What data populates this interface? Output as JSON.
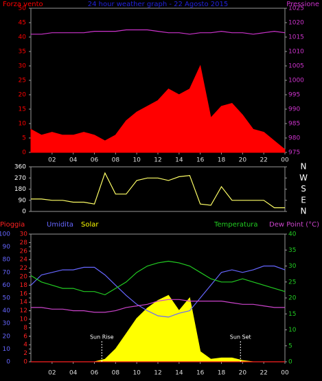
{
  "chart_data": [
    {
      "type": "line",
      "title": "24 hour weather graph - 22 Agosto 2015",
      "x": [
        0,
        1,
        2,
        3,
        4,
        5,
        6,
        7,
        8,
        9,
        10,
        11,
        12,
        13,
        14,
        15,
        16,
        17,
        18,
        19,
        20,
        21,
        22,
        23,
        24
      ],
      "xlim": [
        0,
        24
      ],
      "xticks": [
        {
          "value": 2,
          "label": "02"
        },
        {
          "value": 4,
          "label": "04"
        },
        {
          "value": 6,
          "label": "06"
        },
        {
          "value": 8,
          "label": "08"
        },
        10,
        12,
        14,
        16,
        18,
        20,
        22,
        {
          "value": 24,
          "label": "00"
        }
      ],
      "ylim": [
        0,
        50
      ],
      "yticks": [
        0,
        5,
        10,
        15,
        20,
        25,
        30,
        35,
        40,
        45,
        50
      ],
      "y2lim": [
        975,
        1025
      ],
      "y2ticks": [
        975,
        980,
        985,
        990,
        995,
        1000,
        1005,
        1010,
        1015,
        1020,
        1025
      ],
      "series": [
        {
          "name": "Forza vento",
          "color": "#ff0000",
          "fill": true,
          "values": [
            8,
            6,
            7,
            6,
            6,
            7,
            6,
            4,
            6,
            11,
            14,
            16,
            18,
            22,
            20,
            22,
            30,
            12,
            16,
            17,
            13,
            8,
            7,
            4,
            1
          ]
        },
        {
          "name": "Pressione",
          "color": "#cc33cc",
          "axis": "y2",
          "values": [
            1016,
            1016,
            1016.5,
            1016.5,
            1016.5,
            1016.5,
            1017,
            1017,
            1017,
            1017.5,
            1017.5,
            1017.5,
            1017,
            1016.5,
            1016.5,
            1016,
            1016.5,
            1016.5,
            1017,
            1016.5,
            1016.5,
            1016,
            1016.5,
            1017,
            1016.5
          ]
        }
      ]
    },
    {
      "type": "line",
      "x": [
        0,
        1,
        2,
        3,
        4,
        5,
        6,
        7,
        8,
        9,
        10,
        11,
        12,
        13,
        14,
        15,
        16,
        17,
        18,
        19,
        20,
        21,
        22,
        23,
        24
      ],
      "xlim": [
        0,
        24
      ],
      "ylim": [
        0,
        360
      ],
      "yticks": [
        0,
        90,
        180,
        270,
        360
      ],
      "y2lim": [
        0,
        360
      ],
      "y2ticks": [
        {
          "value": 0,
          "label": "N"
        },
        {
          "value": 90,
          "label": "E"
        },
        {
          "value": 180,
          "label": "S"
        },
        {
          "value": 270,
          "label": "W"
        },
        {
          "value": 360,
          "label": "N"
        }
      ],
      "series": [
        {
          "color": "#ffff66",
          "values": [
            100,
            100,
            90,
            90,
            75,
            75,
            60,
            310,
            140,
            140,
            250,
            270,
            270,
            250,
            280,
            290,
            60,
            50,
            200,
            90,
            90,
            90,
            90,
            30,
            30
          ]
        }
      ]
    },
    {
      "type": "line",
      "x": [
        0,
        1,
        2,
        3,
        4,
        5,
        6,
        7,
        8,
        9,
        10,
        11,
        12,
        13,
        14,
        15,
        16,
        17,
        18,
        19,
        20,
        21,
        22,
        23,
        24
      ],
      "xlim": [
        0,
        24
      ],
      "xticks": [
        {
          "value": 2,
          "label": "02"
        },
        {
          "value": 4,
          "label": "04"
        },
        {
          "value": 6,
          "label": "06"
        },
        {
          "value": 8,
          "label": "08"
        },
        10,
        12,
        14,
        16,
        18,
        20,
        22,
        {
          "value": 24,
          "label": "00"
        }
      ],
      "ylim": [
        0,
        100
      ],
      "yticks": [
        0,
        10,
        20,
        30,
        40,
        50,
        60,
        70,
        80,
        90,
        100
      ],
      "y3lim": [
        0,
        30
      ],
      "y3ticks": [
        0,
        2,
        4,
        6,
        8,
        10,
        12,
        14,
        16,
        18,
        20,
        22,
        24,
        26,
        28,
        30
      ],
      "y2lim": [
        0,
        40
      ],
      "y2ticks": [
        0,
        5,
        10,
        15,
        20,
        25,
        30,
        35,
        40
      ],
      "series": [
        {
          "name": "Pioggia",
          "color": "#ff2020",
          "axis": "y3",
          "values": [
            0,
            0,
            0,
            0,
            0,
            0,
            0,
            0,
            0,
            0,
            0,
            0,
            0,
            0,
            0,
            0,
            0,
            0,
            0,
            0,
            0,
            0,
            0,
            0,
            0
          ]
        },
        {
          "name": "Umidita",
          "color": "#6666ff",
          "values": [
            60,
            68,
            70,
            72,
            72,
            74,
            74,
            68,
            60,
            52,
            45,
            40,
            36,
            35,
            38,
            40,
            50,
            60,
            70,
            72,
            70,
            72,
            75,
            75,
            72
          ]
        },
        {
          "name": "Solar",
          "color": "#ffff00",
          "fill": true,
          "values": [
            0,
            0,
            0,
            0,
            0,
            0,
            0,
            2,
            10,
            22,
            34,
            42,
            48,
            52,
            40,
            50,
            8,
            2,
            3,
            3,
            1,
            0,
            0,
            0,
            0
          ]
        },
        {
          "name": "Temperatura",
          "color": "#22cc22",
          "axis": "y2",
          "values": [
            27,
            25,
            24,
            23,
            23,
            22,
            22,
            21,
            23,
            25,
            28,
            30,
            31,
            31.5,
            31,
            30,
            28,
            26,
            25,
            25,
            26,
            25,
            24,
            23,
            22
          ]
        },
        {
          "name": "Dew Point (°C)",
          "color": "#cc44cc",
          "axis": "y2",
          "values": [
            17,
            17,
            16.5,
            16.5,
            16,
            16,
            15.5,
            15.5,
            16,
            17,
            17.5,
            18,
            19,
            19.5,
            19.5,
            19,
            19,
            19,
            19,
            18.5,
            18,
            18,
            17.5,
            17,
            17
          ]
        }
      ],
      "annotations": [
        {
          "text": "Sun Rise",
          "x": 6.7
        },
        {
          "text": "Sun Set",
          "x": 19.8
        }
      ]
    }
  ]
}
